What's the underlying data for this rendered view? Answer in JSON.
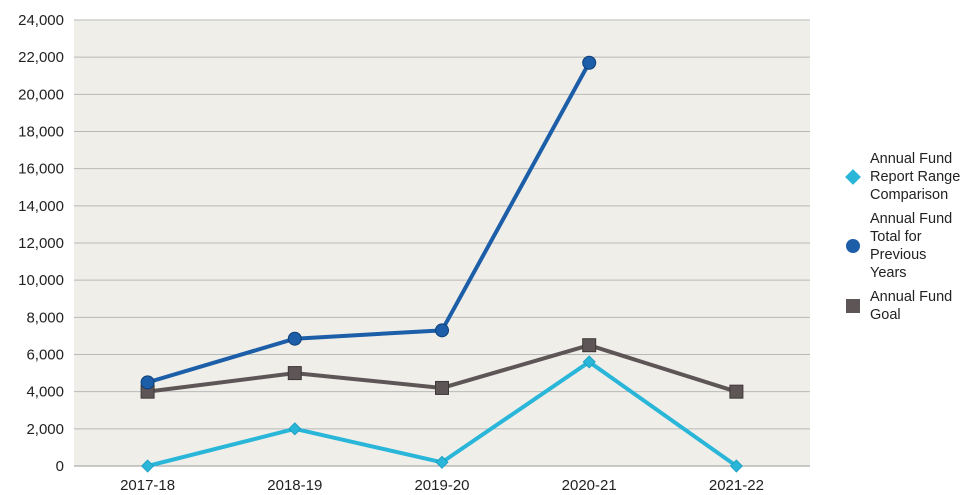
{
  "chart_data": {
    "type": "line",
    "categories": [
      "2017-18",
      "2018-19",
      "2019-20",
      "2020-21",
      "2021-22"
    ],
    "ylim": [
      0,
      24000
    ],
    "yticks": [
      0,
      2000,
      4000,
      6000,
      8000,
      10000,
      12000,
      14000,
      16000,
      18000,
      20000,
      22000,
      24000
    ],
    "ytick_labels": [
      "0",
      "2,000",
      "4,000",
      "6,000",
      "8,000",
      "10,000",
      "12,000",
      "14,000",
      "16,000",
      "18,000",
      "20,000",
      "22,000",
      "24,000"
    ],
    "grid": "horizontal",
    "legend_position": "right",
    "series": [
      {
        "name": "Annual Fund Report Range Comparison",
        "legend_lines": [
          "Annual Fund",
          "Report Range",
          "Comparison"
        ],
        "marker": "diamond",
        "color": "#29b6d8",
        "values": [
          0,
          2000,
          200,
          5600,
          0
        ]
      },
      {
        "name": "Annual Fund Total for Previous Years",
        "legend_lines": [
          "Annual Fund",
          "Total for",
          "Previous",
          "Years"
        ],
        "marker": "circle",
        "color": "#1c5ea8",
        "values": [
          4500,
          6850,
          7300,
          21700,
          null
        ]
      },
      {
        "name": "Annual Fund Goal",
        "legend_lines": [
          "Annual Fund",
          "Goal"
        ],
        "marker": "square",
        "color": "#5e5656",
        "values": [
          4000,
          5000,
          4200,
          6500,
          4000
        ]
      }
    ]
  }
}
